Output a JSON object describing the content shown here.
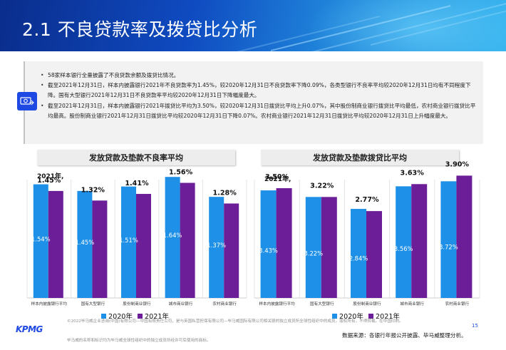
{
  "title": "2.1 不良贷款率及拨贷比分析",
  "summary": {
    "bullets": [
      "58家样本银行全量披露了不良贷款余额及拨贷比情况。",
      "截至2021年12月31日，样本内披露银行2021年不良贷款率为1.45%，较2020年12月31日不良贷款率下降0.09%，各类型银行不良率平均较2020年12月31日均有不同程度下降。国有大型银行2021年12月31日不良贷款率平均较2020年12月31日下降幅度最大。",
      "截至2021年12月31日，样本内披露银行2021年拨贷比平均为3.50%，较2020年12月31日拨贷比平均上升0.07%，其中股份制商业银行拨贷比平均最低，农村商业银行拨贷比平均最高。股份制商业银行2021年12月31日拨贷比平均较2020年12月31日下降0.07%。农村商业银行2021年12月31日拨贷比平均较2020年12月31日上升幅度最大。"
    ]
  },
  "charts": {
    "npl": {
      "title": "发放贷款及垫款不良率平均",
      "year_label": "2021年,"
    },
    "prov": {
      "title": "发放贷款及垫款拨贷比平均",
      "year_label": "2021年,"
    }
  },
  "legend": {
    "s2020": "2020年",
    "s2021": "2021年"
  },
  "colors": {
    "s2020": "#1e90e8",
    "s2021": "#6b1e98"
  },
  "chart_data": [
    {
      "type": "bar",
      "title": "发放贷款及垫款不良率平均",
      "categories": [
        "样本内披露银行平均",
        "国有大型银行",
        "股份制商业银行",
        "城市商业银行",
        "农村商业银行"
      ],
      "series": [
        {
          "name": "2020年",
          "values": [
            1.54,
            1.45,
            1.51,
            1.64,
            1.37
          ],
          "labels": [
            "1.54%",
            "1.45%",
            "1.51%",
            "1.64%",
            "1.37%"
          ]
        },
        {
          "name": "2021年",
          "values": [
            1.45,
            1.32,
            1.41,
            1.56,
            1.28
          ],
          "labels": [
            "1.45%",
            "1.32%",
            "1.41%",
            "1.56%",
            "1.28%"
          ]
        }
      ],
      "ylim": [
        0,
        1.7
      ]
    },
    {
      "type": "bar",
      "title": "发放贷款及垫款拨贷比平均",
      "categories": [
        "样本内披露银行平均",
        "国有大型银行",
        "股份制商业银行",
        "城市商业银行",
        "农村商业银行"
      ],
      "series": [
        {
          "name": "2020年",
          "values": [
            3.43,
            3.22,
            2.84,
            3.56,
            3.72
          ],
          "labels": [
            "3.43%",
            "3.22%",
            "2.84%",
            "3.56%",
            "3.72%"
          ]
        },
        {
          "name": "2021年",
          "values": [
            3.5,
            3.22,
            2.77,
            3.63,
            3.9
          ],
          "labels": [
            "3.50%",
            "3.22%",
            "2.77%",
            "3.63%",
            "3.90%"
          ]
        }
      ],
      "ylim": [
        0,
        4.0
      ]
    }
  ],
  "footer": {
    "logo": "KPMG",
    "legal": "©2022毕马威企业咨询(中国)有限公司—中国有限责任公司，是与英国私营担保有限公司—毕马威国际有限公司相关联的独立成员所全球性组织中的成员。版权所有，不得转载。在中国印刷。",
    "legal2": "毕马威的名称和标识均为毕马威全球性组织中的独立成员所经许可后使用的商标。",
    "page": "15",
    "source": "数据来源：各银行年报公开披露、毕马威整理分析。"
  }
}
